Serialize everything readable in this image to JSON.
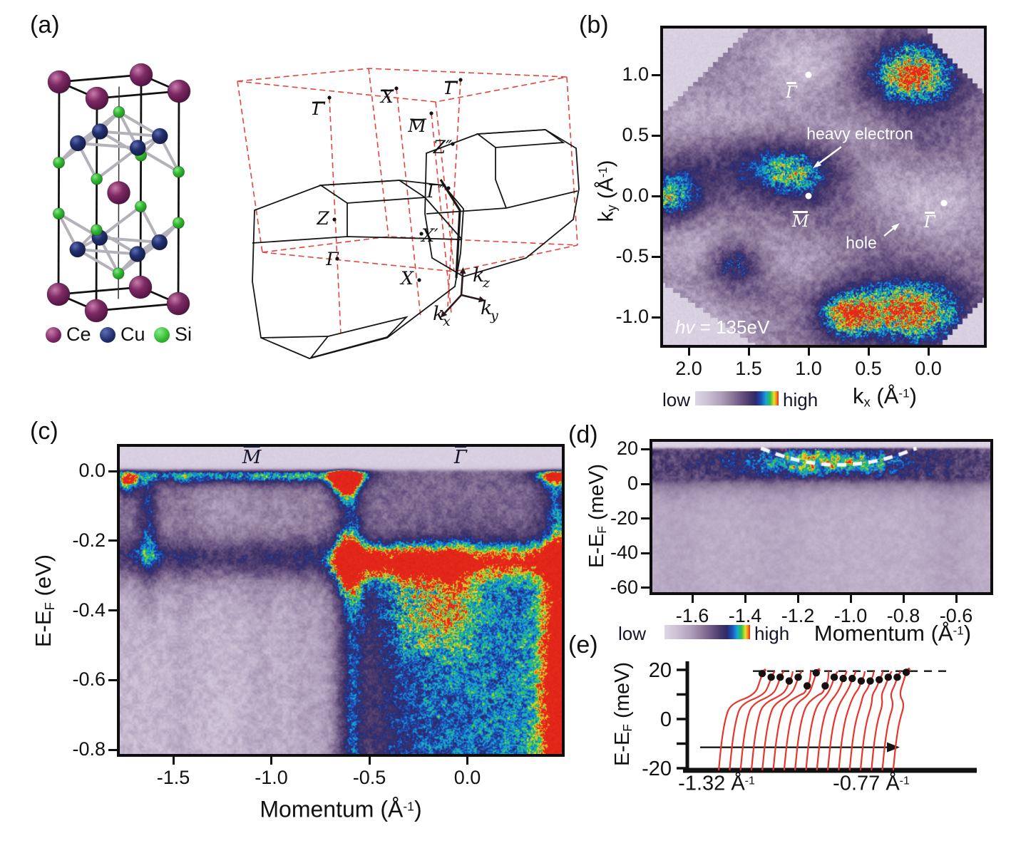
{
  "panels": {
    "a": {
      "tag": "(a)",
      "legend": [
        {
          "element": "Ce",
          "color": "#7d2a63",
          "hi": "#c87bab",
          "lo": "#4e1340"
        },
        {
          "element": "Cu",
          "color": "#23306f",
          "hi": "#5e6cb4",
          "lo": "#121a45"
        },
        {
          "element": "Si",
          "color": "#35bd35",
          "hi": "#8ae88a",
          "lo": "#1d8a1d"
        }
      ],
      "bz_point_labels": [
        {
          "text": "Γ",
          "bar": true
        },
        {
          "text": "X",
          "bar": true
        },
        {
          "text": "Γ",
          "bar": true
        },
        {
          "text": "M",
          "bar": true
        },
        {
          "text": "Z″"
        },
        {
          "text": "Γ″"
        },
        {
          "text": "Z"
        },
        {
          "text": "X′"
        },
        {
          "text": "Γ"
        },
        {
          "text": "X"
        }
      ],
      "axis_triad": [
        {
          "t": "k",
          "sub": "z"
        },
        {
          "t": "k",
          "sub": "x"
        },
        {
          "t": "k",
          "sub": "y"
        }
      ]
    },
    "b": {
      "tag": "(b)",
      "ylabel": [
        {
          "t": "k"
        },
        {
          "t": "y",
          "s": "sub"
        },
        {
          "t": " (Å"
        },
        {
          "t": "-1",
          "s": "sup"
        },
        {
          "t": ")"
        }
      ],
      "xlabel": [
        {
          "t": "k"
        },
        {
          "t": "x",
          "s": "sub"
        },
        {
          "t": " (Å"
        },
        {
          "t": "-1",
          "s": "sup"
        },
        {
          "t": ")"
        }
      ],
      "y_ticks": [
        "1.0",
        "0.5",
        "0.0",
        "-0.5",
        "-1.0"
      ],
      "x_ticks": [
        "2.0",
        "1.5",
        "1.0",
        "0.5",
        "0.0"
      ],
      "colorbar_low": "low",
      "colorbar_high": "high",
      "photon_energy": [
        {
          "t": "hv",
          "s": "i"
        },
        {
          "t": " = 135eV"
        }
      ],
      "annotation_electron": "heavy electron",
      "annotation_hole": "hole",
      "points": [
        {
          "text": "Γ",
          "bar": true,
          "kx": 1.0,
          "ky": 1.0
        },
        {
          "text": "M",
          "bar": true,
          "kx": 1.0,
          "ky": 0.0
        },
        {
          "text": "Γ",
          "bar": true,
          "kx": -0.13,
          "ky": -0.06
        }
      ]
    },
    "c": {
      "tag": "(c)",
      "ylabel": [
        {
          "t": "E-E"
        },
        {
          "t": "F",
          "s": "sub"
        },
        {
          "t": " (eV)"
        }
      ],
      "xlabel": [
        {
          "t": "Momentum (Å"
        },
        {
          "t": "-1",
          "s": "sup"
        },
        {
          "t": ")"
        }
      ],
      "y_ticks": [
        "0.0",
        "-0.2",
        "-0.4",
        "-0.6",
        "-0.8"
      ],
      "x_ticks": [
        "-1.5",
        "-1.0",
        "-0.5",
        "0.0"
      ],
      "points": [
        {
          "text": "M",
          "bar": true,
          "k": -1.1
        },
        {
          "text": "Γ",
          "bar": true,
          "k": -0.035
        }
      ]
    },
    "d": {
      "tag": "(d)",
      "ylabel": [
        {
          "t": "E-E"
        },
        {
          "t": "F",
          "s": "sub"
        },
        {
          "t": " (meV)"
        }
      ],
      "xlabel": [
        {
          "t": "Momentum (Å"
        },
        {
          "t": "-1",
          "s": "sup"
        },
        {
          "t": ")"
        }
      ],
      "y_ticks": [
        "20",
        "0",
        "-20",
        "-40",
        "-60"
      ],
      "x_ticks": [
        "-1.6",
        "-1.4",
        "-1.2",
        "-1.0",
        "-0.8",
        "-0.6"
      ],
      "colorbar_low": "low",
      "colorbar_high": "high"
    },
    "e": {
      "tag": "(e)",
      "ylabel": [
        {
          "t": "E-E"
        },
        {
          "t": "F",
          "s": "sub"
        },
        {
          "t": " (meV)"
        }
      ],
      "y_ticks": [
        "20",
        "0",
        "-20"
      ],
      "x_label_left": [
        {
          "t": "-1.32 Å"
        },
        {
          "t": "-1",
          "s": "sup"
        }
      ],
      "x_label_right": [
        {
          "t": "-0.77 Å"
        },
        {
          "t": "-1",
          "s": "sup"
        }
      ]
    }
  },
  "chart_data": [
    {
      "panel": "b",
      "type": "heatmap",
      "what": "ARPES Fermi-surface map",
      "photon_energy_eV": 135,
      "x": {
        "label": "kx (Å^-1)",
        "ticks": [
          2.0,
          1.5,
          1.0,
          0.5,
          0.0
        ],
        "range": [
          2.21,
          -0.46
        ],
        "reversed": true
      },
      "y": {
        "label": "ky (Å^-1)",
        "ticks": [
          1.0,
          0.5,
          0.0,
          -0.5,
          -1.0
        ],
        "range": [
          -1.23,
          1.38
        ]
      },
      "colorbar": [
        "low",
        "high"
      ],
      "high_symmetry_points": [
        {
          "name": "Γ̄",
          "kx": 1.0,
          "ky": 1.0
        },
        {
          "name": "M̄",
          "kx": 1.0,
          "ky": 0.0
        },
        {
          "name": "Γ̄",
          "kx": -0.13,
          "ky": -0.06
        }
      ],
      "bright_spots": [
        {
          "kx": 0.13,
          "ky": 1.02,
          "rx": 0.3,
          "ry": 0.22,
          "amp": 0.55
        },
        {
          "kx": 1.12,
          "ky": 0.2,
          "rx": 0.3,
          "ry": 0.17,
          "amp": 0.4
        },
        {
          "kx": 2.18,
          "ky": -0.02,
          "rx": 0.2,
          "ry": 0.16,
          "amp": 0.42
        },
        {
          "kx": 1.62,
          "ky": -0.55,
          "rx": 0.16,
          "ry": 0.13,
          "amp": 0.4
        },
        {
          "kx": 0.7,
          "ky": -0.97,
          "rx": 0.18,
          "ry": 0.16,
          "amp": 0.48
        },
        {
          "kx": 0.12,
          "ky": -0.95,
          "rx": 0.34,
          "ry": 0.22,
          "amp": 0.58
        }
      ],
      "annotations": [
        {
          "text": "heavy electron",
          "at_k": [
            1.2,
            0.25
          ]
        },
        {
          "text": "hole",
          "at_k": [
            0.35,
            -0.25
          ]
        }
      ]
    },
    {
      "panel": "c",
      "type": "heatmap",
      "what": "Valence-band dispersion along M̄–Γ̄",
      "x": {
        "label": "Momentum (Å^-1)",
        "ticks": [
          -1.5,
          -1.0,
          -0.5,
          0.0
        ],
        "range": [
          -1.77,
          0.48
        ]
      },
      "y": {
        "label": "E-EF (eV)",
        "ticks": [
          0.0,
          -0.2,
          -0.4,
          -0.6,
          -0.8
        ],
        "range": [
          -0.82,
          0.07
        ]
      },
      "high_symmetry_points": [
        {
          "name": "M̄",
          "k": -1.1
        },
        {
          "name": "Γ̄",
          "k": -0.035
        }
      ],
      "features": {
        "fermi_level_eV": 0.0,
        "flat_band_eV": -0.25
      }
    },
    {
      "panel": "d",
      "type": "heatmap",
      "what": "Near-EF dispersion of heavy electron band",
      "x": {
        "label": "Momentum (Å^-1)",
        "ticks": [
          -1.6,
          -1.4,
          -1.2,
          -1.0,
          -0.8,
          -0.6
        ],
        "range": [
          -1.75,
          -0.47
        ]
      },
      "y": {
        "label": "E-EF (meV)",
        "ticks": [
          20,
          0,
          -20,
          -40,
          -60
        ],
        "range": [
          -63,
          24
        ]
      },
      "colorbar": [
        "low",
        "high"
      ],
      "dashed_band": {
        "kF": [
          -1.32,
          -0.77
        ],
        "band_bottom_meV": 11,
        "band_top_meV": 19.5
      }
    },
    {
      "panel": "e",
      "type": "line",
      "what": "EDC stack with fitted peak positions",
      "x": {
        "range": [
          -1.32,
          -0.77
        ],
        "start_label": "-1.32 Å^-1",
        "end_label": "-0.77 Å^-1"
      },
      "y": {
        "label": "E-EF (meV)",
        "ticks": [
          20,
          0,
          -20
        ],
        "range": [
          -22,
          24
        ]
      },
      "n_curves": 17,
      "peak_positions_meV": [
        18.5,
        17,
        17,
        15.5,
        17,
        13.5,
        18.8,
        13.5,
        17,
        16.5,
        16.5,
        15.5,
        15.5,
        16,
        17,
        17,
        19
      ],
      "dashed_line_meV": 19.5,
      "arrow_meV": -11.5,
      "curve_color": "#e8352c"
    }
  ]
}
